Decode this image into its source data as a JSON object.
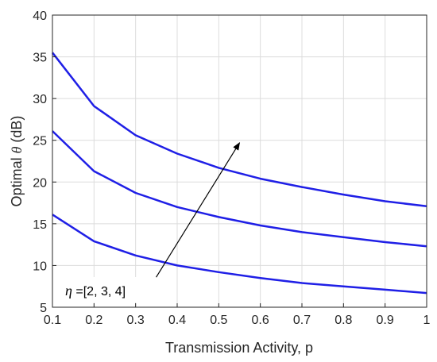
{
  "chart_data": {
    "type": "line",
    "title": "",
    "xlabel": "Transmission Activity, p",
    "ylabel": {
      "prefix": "Optimal ",
      "symbol": "θ",
      "suffix": " (dB)"
    },
    "xlim": [
      0.1,
      1
    ],
    "ylim": [
      5,
      40
    ],
    "x_ticks": [
      "0.1",
      "0.2",
      "0.3",
      "0.4",
      "0.5",
      "0.6",
      "0.7",
      "0.8",
      "0.9",
      "1"
    ],
    "y_ticks": [
      "5",
      "10",
      "15",
      "20",
      "25",
      "30",
      "35",
      "40"
    ],
    "grid": true,
    "line_color": "#1f1fe6",
    "x": [
      0.1,
      0.2,
      0.3,
      0.4,
      0.5,
      0.6,
      0.7,
      0.8,
      0.9,
      1.0
    ],
    "series": [
      {
        "values": [
          16.1,
          12.9,
          11.2,
          10.0,
          9.2,
          8.5,
          7.9,
          7.5,
          7.1,
          6.7
        ]
      },
      {
        "values": [
          26.1,
          21.3,
          18.7,
          17.0,
          15.8,
          14.8,
          14.0,
          13.4,
          12.8,
          12.3
        ]
      },
      {
        "values": [
          35.5,
          29.1,
          25.6,
          23.4,
          21.7,
          20.4,
          19.4,
          18.5,
          17.7,
          17.1
        ]
      }
    ],
    "annotation": {
      "symbol": "η",
      "text": " =[2, 3, 4]",
      "arrow_from": {
        "x": 0.3495,
        "y": 8.6
      },
      "arrow_to": {
        "x": 0.55,
        "y": 24.7
      }
    }
  }
}
